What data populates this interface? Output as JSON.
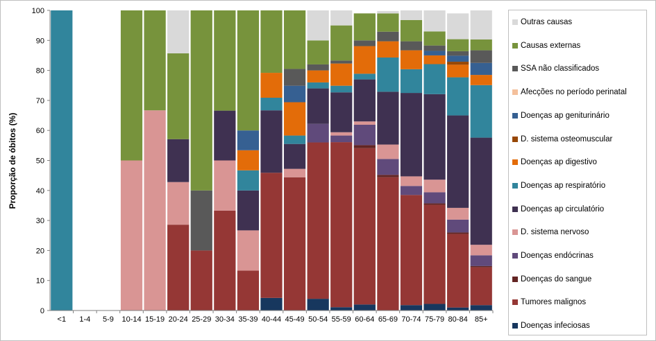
{
  "chart_data": {
    "type": "bar",
    "stacked": true,
    "ylabel": "Proporção de óbitos (%)",
    "xlabel": "",
    "ylim": [
      0,
      100
    ],
    "yticks": [
      0,
      10,
      20,
      30,
      40,
      50,
      60,
      70,
      80,
      90,
      100
    ],
    "grid": false,
    "legend_position": "right",
    "categories": [
      "<1",
      "1-4",
      "5-9",
      "10-14",
      "15-19",
      "20-24",
      "25-29",
      "30-34",
      "35-39",
      "40-44",
      "45-49",
      "50-54",
      "55-59",
      "60-64",
      "65-69",
      "70-74",
      "75-79",
      "80-84",
      "85+"
    ],
    "series": [
      {
        "name": "Doenças infeciosas",
        "color": "#17375e",
        "values": [
          0,
          0,
          0,
          0,
          0,
          0,
          0,
          0,
          0,
          4.2,
          0,
          3.9,
          1.1,
          2,
          0,
          1.8,
          2.2,
          1,
          1.8
        ]
      },
      {
        "name": "Tumores malignos",
        "color": "#953735",
        "values": [
          0,
          0,
          0,
          0,
          0,
          28.6,
          20,
          33.3,
          13.3,
          41.7,
          44.4,
          52.1,
          55,
          52.1,
          44.4,
          36.7,
          33,
          24.5,
          12.6
        ]
      },
      {
        "name": "Doenças do sangue",
        "color": "#632523",
        "values": [
          0,
          0,
          0,
          0,
          0,
          0,
          0,
          0,
          0,
          0,
          0,
          0,
          0,
          1,
          0.8,
          0,
          0.5,
          0.5,
          0.4
        ]
      },
      {
        "name": "Doenças endócrinas",
        "color": "#604a7b",
        "values": [
          0,
          0,
          0,
          0,
          0,
          0,
          0,
          0,
          0,
          0,
          0,
          6.2,
          2.2,
          6.8,
          5.3,
          3,
          3.7,
          4.3,
          3.6
        ]
      },
      {
        "name": "D. sistema nervoso",
        "color": "#d99594",
        "values": [
          0,
          0,
          0,
          50,
          66.7,
          14.2,
          0,
          16.7,
          13.4,
          0,
          2.8,
          0,
          1.1,
          1.1,
          4.8,
          3.2,
          4.2,
          3.9,
          3.5
        ]
      },
      {
        "name": "Doenças ap circulatório",
        "color": "#3f3151",
        "values": [
          0,
          0,
          0,
          0,
          0,
          14.3,
          0,
          16.6,
          13.3,
          20.8,
          8.3,
          11.8,
          13.3,
          14,
          17.6,
          27.8,
          28.5,
          30.8,
          35.7
        ]
      },
      {
        "name": "Doenças ap respiratório",
        "color": "#31859c",
        "values": [
          100,
          0,
          0,
          0,
          0,
          0,
          0,
          0,
          6.7,
          4.2,
          2.8,
          2,
          2.2,
          1.9,
          11.4,
          7.9,
          10,
          12.7,
          17.5
        ]
      },
      {
        "name": "Doenças ap digestivo",
        "color": "#e36c09",
        "values": [
          0,
          0,
          0,
          0,
          0,
          0,
          0,
          0,
          6.7,
          8.3,
          11.1,
          4,
          7.4,
          9.2,
          5.4,
          6.3,
          2.9,
          4.2,
          3.4
        ]
      },
      {
        "name": "D. sistema osteomuscular",
        "color": "#974706",
        "values": [
          0,
          0,
          0,
          0,
          0,
          0,
          0,
          0,
          0,
          0,
          0,
          0,
          0,
          0,
          0,
          0,
          0,
          1,
          0
        ]
      },
      {
        "name": "Doenças ap geniturinário",
        "color": "#366092",
        "values": [
          0,
          0,
          0,
          0,
          0,
          0,
          0,
          0,
          6.6,
          0,
          5.5,
          0,
          0,
          0,
          0,
          0,
          1.5,
          2,
          4
        ]
      },
      {
        "name": "Afecções no período perinatal",
        "color": "#f4c09c",
        "values": [
          0,
          0,
          0,
          0,
          0,
          0,
          0,
          0,
          0,
          0,
          0,
          0,
          0,
          0,
          0,
          0,
          0,
          0,
          0
        ]
      },
      {
        "name": "SSA não classificados",
        "color": "#595959",
        "values": [
          0,
          0,
          0,
          0,
          0,
          0,
          20,
          0,
          0,
          0,
          5.6,
          2,
          1,
          1.9,
          3.2,
          3,
          1.8,
          1.5,
          4.2
        ]
      },
      {
        "name": "Causas externas",
        "color": "#77933c",
        "values": [
          0,
          0,
          0,
          50,
          33.3,
          28.6,
          60,
          33.4,
          40,
          20.8,
          19.5,
          8,
          11.7,
          9,
          6.1,
          7.1,
          4.7,
          4,
          3.6
        ]
      },
      {
        "name": "Outras causas",
        "color": "#d9d9d9",
        "values": [
          0,
          0,
          0,
          0,
          0,
          14.3,
          0,
          0,
          0,
          0,
          0,
          10,
          5,
          0,
          0.8,
          3.2,
          7,
          8.6,
          9.7
        ]
      }
    ]
  }
}
